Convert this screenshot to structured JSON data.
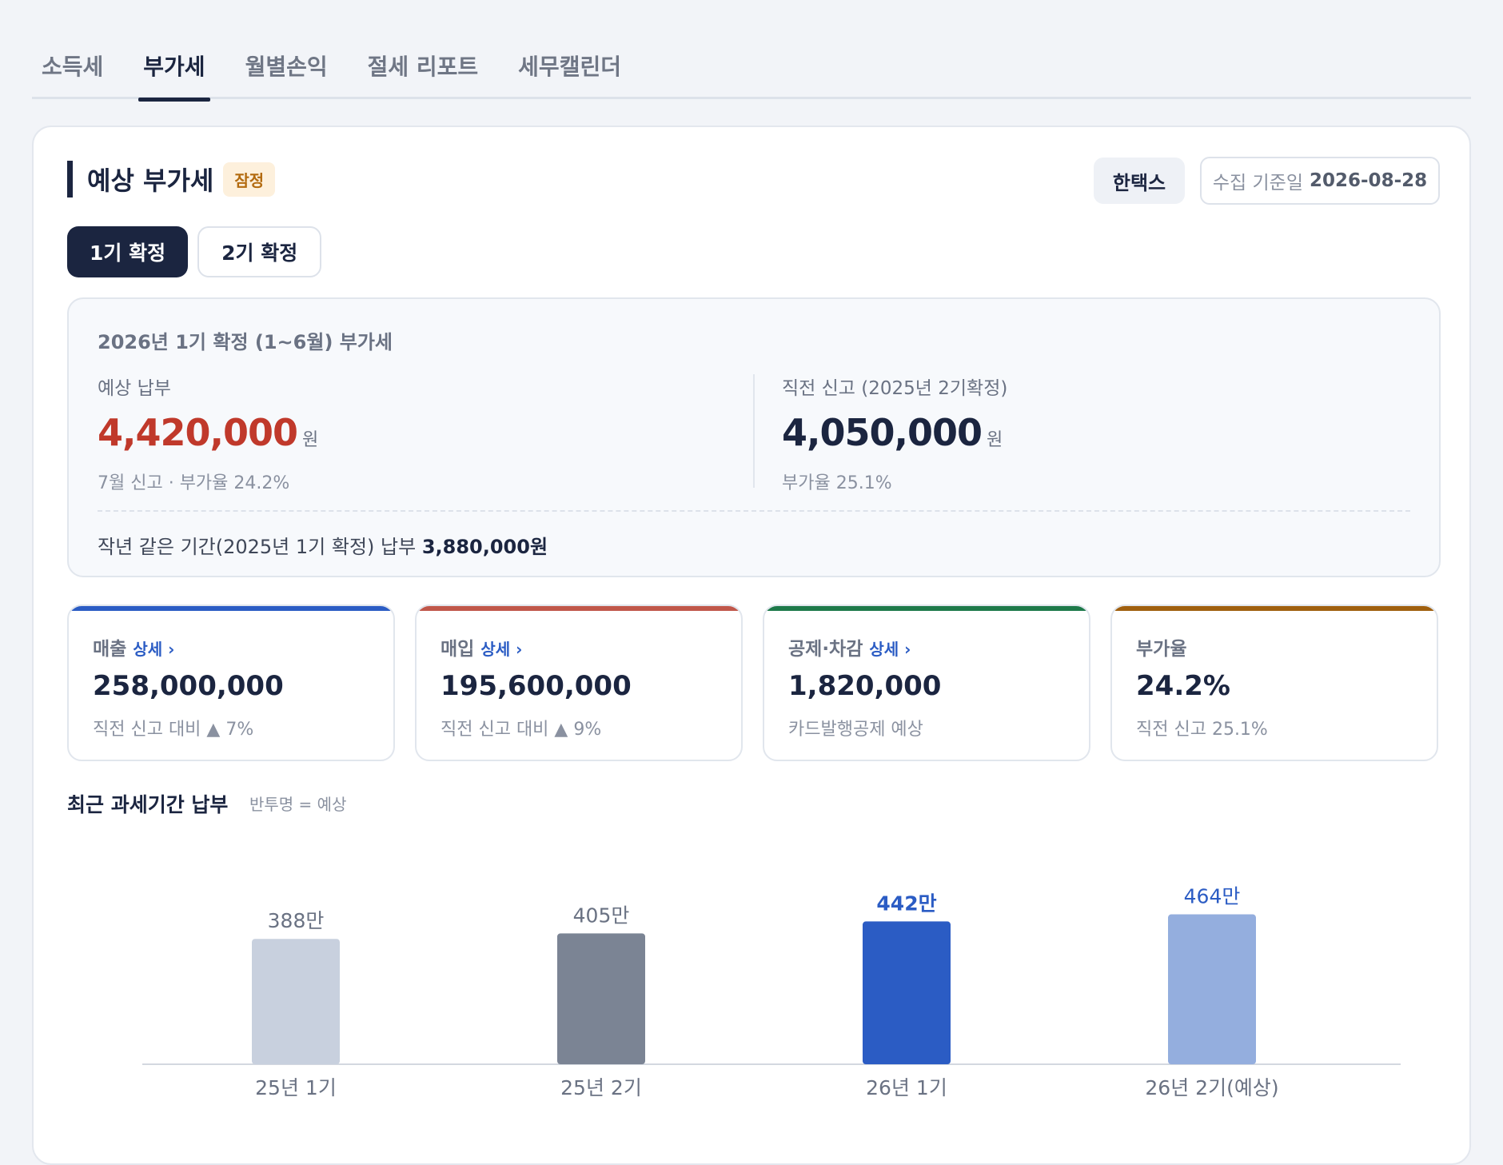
{
  "tabs": [
    "소득세",
    "부가세",
    "월별손익",
    "절세 리포트",
    "세무캘린더"
  ],
  "active_tab": "부가세",
  "header": {
    "title": "예상 부가세",
    "badge": "잠정",
    "hometax_button": "한택스",
    "base_date_label": "수집 기준일",
    "base_date_value": "2026-08-28"
  },
  "period_selector": {
    "first": "1기 확정",
    "second": "2기 확정",
    "selected": "1기 확정"
  },
  "summary": {
    "title": "2026년 1기 확정 (1~6월) 부가세",
    "expected": {
      "label": "예상 납부",
      "amount": "4,420,000",
      "unit": "원",
      "note": "7월 신고 · 부가율 24.2%"
    },
    "previous": {
      "label": "직전 신고 (2025년 2기확정)",
      "amount": "4,050,000",
      "unit": "원",
      "note": "부가율 25.1%"
    },
    "last_year_prefix": "작년 같은 기간(2025년 1기 확정) 납부",
    "last_year_amount": "3,880,000원"
  },
  "metrics": [
    {
      "label": "매출",
      "link": "상세 ›",
      "value": "258,000,000",
      "sub": "직전 신고 대비 ▲ 7%",
      "color": "#2b5cc4"
    },
    {
      "label": "매입",
      "link": "상세 ›",
      "value": "195,600,000",
      "sub": "직전 신고 대비 ▲ 9%",
      "color": "#c0574a"
    },
    {
      "label": "공제·차감",
      "link": "상세 ›",
      "value": "1,820,000",
      "sub": "카드발행공제 예상",
      "color": "#1e7a4a"
    },
    {
      "label": "부가율",
      "link": "",
      "value": "24.2%",
      "sub": "직전 신고 25.1%",
      "color": "#a0600f"
    }
  ],
  "chart_title": "최근 과세기간 납부",
  "chart_note": "반투명 = 예상",
  "chart_data": {
    "type": "bar",
    "categories": [
      "25년 1기",
      "25년 2기",
      "26년 1기",
      "26년 2기(예상)"
    ],
    "values": [
      388,
      405,
      442,
      464
    ],
    "value_labels": [
      "388만",
      "405만",
      "442만",
      "464만"
    ],
    "unit": "만",
    "colors": [
      "#c8d0de",
      "#7b8494",
      "#2b5cc4",
      "#94aede"
    ],
    "highlight_index": 2
  }
}
